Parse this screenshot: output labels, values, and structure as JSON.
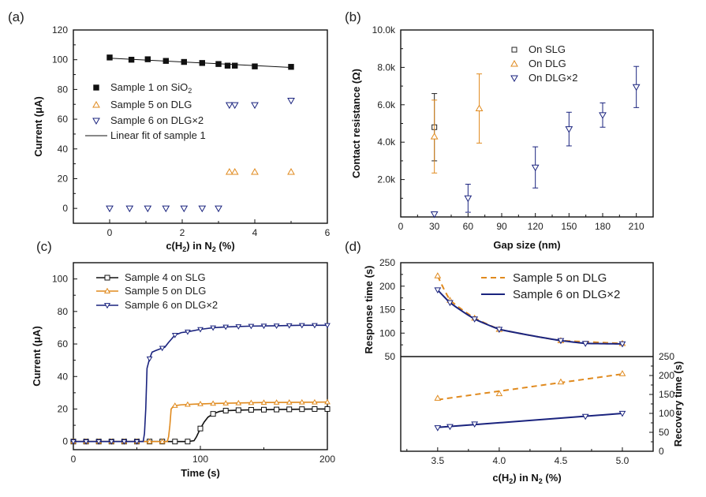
{
  "figure": {
    "colors": {
      "black": "#111111",
      "orange": "#e08a1e",
      "navy": "#1a237e",
      "errbar_black": "#222222"
    }
  },
  "chart_data": [
    {
      "id": "a",
      "panel_label": "(a)",
      "type": "scatter",
      "xlabel_parts": [
        "c(H",
        "2",
        ") in N",
        "2",
        " (%)"
      ],
      "ylabel": "Current (μA)",
      "xlim": [
        -1,
        6
      ],
      "ylim": [
        -10,
        120
      ],
      "xticks": [
        0,
        2,
        4,
        6
      ],
      "yticks": [
        0,
        20,
        40,
        60,
        80,
        100,
        120
      ],
      "series": [
        {
          "name": "Sample 1 on SiO2",
          "legend_parts": [
            "Sample 1 on SiO",
            "2",
            ""
          ],
          "marker": "square-filled",
          "color": "#111111",
          "x": [
            0,
            0.6,
            1.05,
            1.55,
            2.05,
            2.55,
            3.0,
            3.25,
            3.45,
            4.0,
            5.0
          ],
          "y": [
            101.5,
            100,
            100.3,
            99.2,
            98.5,
            97.8,
            97.1,
            96.0,
            96.0,
            95.5,
            95.2
          ]
        },
        {
          "name": "Sample 5 on DLG",
          "legend_parts": [
            "Sample 5 on DLG"
          ],
          "marker": "triangle-up",
          "color": "#e08a1e",
          "x": [
            3.3,
            3.45,
            4.0,
            5.0
          ],
          "y": [
            24.5,
            24.5,
            24.5,
            24.5
          ]
        },
        {
          "name": "Sample 6 on DLG×2",
          "legend_parts": [
            "Sample 6 on DLG×2"
          ],
          "marker": "triangle-down",
          "color": "#1a237e",
          "x": [
            0,
            0.55,
            1.05,
            1.55,
            2.05,
            2.55,
            3.0,
            3.3,
            3.45,
            4.0,
            5.0
          ],
          "y": [
            0,
            0,
            0,
            0,
            0,
            0,
            0,
            69.5,
            69.5,
            69.5,
            72.5
          ]
        },
        {
          "name": "Linear fit of sample 1",
          "legend_parts": [
            "Linear fit of sample 1"
          ],
          "marker": "line",
          "color": "#111111",
          "x": [
            0,
            5
          ],
          "y": [
            101.0,
            94.8
          ]
        }
      ]
    },
    {
      "id": "b",
      "panel_label": "(b)",
      "type": "scatter",
      "xlabel": "Gap size (nm)",
      "ylabel": "Contact resistance (Ω)",
      "xlim": [
        0,
        225
      ],
      "ylim": [
        0,
        10000
      ],
      "xticks": [
        0,
        30,
        60,
        90,
        120,
        150,
        180,
        210
      ],
      "yticks": [
        2000,
        4000,
        6000,
        8000,
        10000
      ],
      "ytick_labels": [
        "2.0k",
        "4.0k",
        "6.0k",
        "8.0k",
        "10.0k"
      ],
      "series": [
        {
          "name": "On SLG",
          "marker": "square-open",
          "color": "#222222",
          "x": [
            30
          ],
          "y": [
            4800
          ],
          "err": [
            1800
          ]
        },
        {
          "name": "On DLG",
          "marker": "triangle-up",
          "color": "#e08a1e",
          "x": [
            30,
            70
          ],
          "y": [
            4300,
            5800
          ],
          "err": [
            1950,
            1850
          ]
        },
        {
          "name": "On DLG×2",
          "marker": "triangle-down",
          "color": "#1a237e",
          "x": [
            30,
            60,
            120,
            150,
            180,
            210
          ],
          "y": [
            150,
            1000,
            2650,
            4700,
            5450,
            6950
          ],
          "err": [
            0,
            750,
            1100,
            900,
            650,
            1100
          ]
        }
      ]
    },
    {
      "id": "c",
      "panel_label": "(c)",
      "type": "line",
      "xlabel": "Time (s)",
      "ylabel": "Current (μA)",
      "xlim": [
        0,
        200
      ],
      "ylim": [
        -5,
        110
      ],
      "xticks": [
        0,
        100,
        200
      ],
      "yticks": [
        0,
        20,
        40,
        60,
        80,
        100
      ],
      "series": [
        {
          "name": "Sample 4 on SLG",
          "marker": "square-open",
          "color": "#111111",
          "x": [
            0,
            10,
            20,
            30,
            40,
            50,
            60,
            70,
            80,
            90,
            95,
            97,
            100,
            103,
            106,
            110,
            115,
            120,
            130,
            140,
            150,
            160,
            170,
            180,
            190,
            200
          ],
          "y": [
            0,
            0,
            0,
            0,
            0,
            0,
            0,
            0,
            0,
            0,
            0.5,
            3,
            8,
            12,
            15,
            17,
            18.5,
            19,
            19.3,
            19.5,
            19.6,
            19.7,
            19.8,
            19.9,
            20,
            20
          ]
        },
        {
          "name": "Sample 5 on DLG",
          "marker": "triangle-up",
          "color": "#e08a1e",
          "x": [
            0,
            10,
            20,
            30,
            40,
            50,
            60,
            70,
            74,
            75,
            76,
            77,
            79,
            85,
            95,
            110,
            130,
            150,
            170,
            190,
            200
          ],
          "y": [
            0,
            0,
            0,
            0,
            0,
            0,
            0,
            0,
            0,
            3,
            10,
            20,
            22,
            22.6,
            23,
            23.4,
            23.7,
            24,
            24.1,
            24.2,
            24.3
          ]
        },
        {
          "name": "Sample 6 on DLG×2",
          "marker": "triangle-down",
          "color": "#1a237e",
          "x": [
            0,
            10,
            20,
            30,
            40,
            50,
            55,
            56,
            57,
            58,
            60,
            62,
            65,
            70,
            72,
            75,
            80,
            85,
            90,
            100,
            110,
            120,
            140,
            160,
            180,
            200
          ],
          "y": [
            0,
            0,
            0,
            0,
            0,
            0,
            0,
            5,
            20,
            45,
            51,
            55,
            56,
            57.5,
            58,
            61,
            65.5,
            67,
            67.5,
            69,
            70,
            70.5,
            71,
            71.2,
            71.5,
            71.5
          ]
        }
      ]
    },
    {
      "id": "d",
      "panel_label": "(d)",
      "type": "line",
      "xlabel_parts": [
        "c(H",
        "2",
        ") in N",
        "2",
        " (%)"
      ],
      "ylabel": "Response time (s)",
      "ylabel_right": "Recovery time (s)",
      "xlim": [
        3.2,
        5.25
      ],
      "xticks": [
        3.5,
        4.0,
        4.5,
        5.0
      ],
      "xtick_labels": [
        "3.5",
        "4.0",
        "4.5",
        "5.0"
      ],
      "top": {
        "ylim": [
          50,
          250
        ],
        "yticks": [
          50,
          100,
          150,
          200,
          250
        ]
      },
      "bottom": {
        "ylim": [
          0,
          250
        ],
        "yticks": [
          0,
          50,
          100,
          150,
          200,
          250
        ]
      },
      "series": [
        {
          "name": "Sample 5 on DLG",
          "marker": "triangle-up",
          "color": "#e08a1e",
          "dashed": true,
          "response_x": [
            3.5,
            3.6,
            3.8,
            4.0,
            4.5,
            5.0
          ],
          "response_y": [
            222,
            170,
            132,
            108,
            84,
            78
          ],
          "recovery_x": [
            3.5,
            4.0,
            4.5,
            5.0
          ],
          "recovery_y": [
            140,
            152,
            183,
            205
          ]
        },
        {
          "name": "Sample 6 on DLG×2",
          "marker": "triangle-down",
          "color": "#1a237e",
          "dashed": false,
          "response_x": [
            3.5,
            3.6,
            3.8,
            4.0,
            4.5,
            4.7,
            5.0
          ],
          "response_y": [
            192,
            165,
            130,
            108,
            84,
            78,
            77
          ],
          "recovery_x": [
            3.5,
            3.6,
            3.8,
            4.7,
            5.0
          ],
          "recovery_y": [
            62,
            65,
            72,
            92,
            100
          ]
        }
      ]
    }
  ]
}
